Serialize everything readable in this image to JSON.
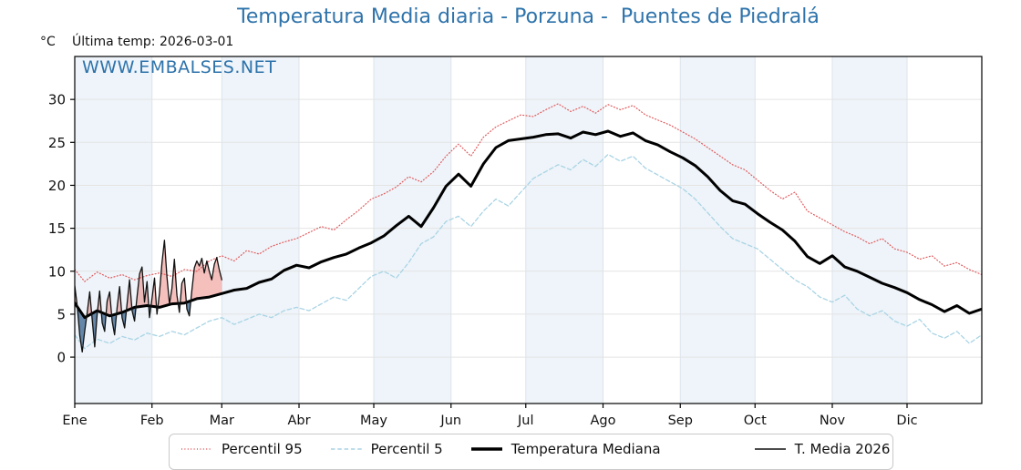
{
  "title": "Temperatura Media diaria - Porzuna -  Puentes de Piedralá",
  "unit_label": "°C",
  "last_temp_label": "Última temp: 2026-03-01",
  "watermark": "WWW.EMBALSES.NET",
  "colors": {
    "title_blue": "#2e73ab",
    "watermark_blue": "#2e73ab",
    "band_blue": "#eef4f9",
    "grid_h": "#e4e4e4",
    "grid_v": "#dde4ea",
    "spine": "#000000",
    "fill_above": "rgba(233,112,106,0.45)",
    "fill_below": "rgba(54,98,142,0.75)"
  },
  "chart_data": {
    "type": "line",
    "title": "Temperatura Media diaria - Porzuna -  Puentes de Piedralá",
    "xlabel": "",
    "ylabel": "°C",
    "ylim": [
      -5.4,
      35
    ],
    "grid": true,
    "legend_position": "bottom",
    "y_ticks": [
      0,
      5,
      10,
      15,
      20,
      25,
      30
    ],
    "x_tick_labels": [
      "Ene",
      "Feb",
      "Mar",
      "Abr",
      "May",
      "Jun",
      "Jul",
      "Ago",
      "Sep",
      "Oct",
      "Nov",
      "Dic"
    ],
    "x_tick_days": [
      1,
      32,
      60,
      91,
      121,
      152,
      182,
      213,
      244,
      274,
      305,
      335
    ],
    "month_lengths": [
      31,
      28,
      31,
      30,
      31,
      30,
      31,
      31,
      30,
      31,
      30,
      31
    ],
    "days_climatology": [
      1,
      5,
      10,
      15,
      20,
      25,
      30,
      35,
      40,
      45,
      50,
      55,
      60,
      65,
      70,
      75,
      80,
      85,
      90,
      95,
      100,
      105,
      110,
      115,
      120,
      125,
      130,
      135,
      140,
      145,
      150,
      155,
      160,
      165,
      170,
      175,
      180,
      185,
      190,
      195,
      200,
      205,
      210,
      215,
      220,
      225,
      230,
      235,
      240,
      245,
      250,
      255,
      260,
      265,
      270,
      275,
      280,
      285,
      290,
      295,
      300,
      305,
      310,
      315,
      320,
      325,
      330,
      335,
      340,
      345,
      350,
      355,
      360,
      365
    ],
    "days_2026": [
      1,
      2,
      3,
      4,
      5,
      6,
      7,
      8,
      9,
      10,
      11,
      12,
      13,
      14,
      15,
      16,
      17,
      18,
      19,
      20,
      21,
      22,
      23,
      24,
      25,
      26,
      27,
      28,
      29,
      30,
      31,
      32,
      33,
      34,
      35,
      36,
      37,
      38,
      39,
      40,
      41,
      42,
      43,
      44,
      45,
      46,
      47,
      48,
      49,
      50,
      51,
      52,
      53,
      54,
      55,
      56,
      57,
      58,
      59,
      60
    ],
    "series": [
      {
        "name": "Percentil 95",
        "style": "dotted",
        "color": "#e25b5e",
        "width": 1.2,
        "x_key": "days_climatology",
        "values": [
          10.2,
          8.8,
          9.9,
          9.2,
          9.6,
          9.0,
          9.5,
          9.8,
          9.4,
          10.2,
          10.0,
          11.2,
          11.8,
          11.2,
          12.4,
          12.0,
          12.9,
          13.4,
          13.8,
          14.5,
          15.2,
          14.8,
          16.0,
          17.1,
          18.4,
          19.0,
          19.8,
          21.0,
          20.4,
          21.6,
          23.4,
          24.8,
          23.4,
          25.6,
          26.8,
          27.5,
          28.2,
          28.0,
          28.8,
          29.5,
          28.6,
          29.2,
          28.4,
          29.4,
          28.8,
          29.3,
          28.2,
          27.6,
          27.0,
          26.2,
          25.4,
          24.4,
          23.4,
          22.4,
          21.8,
          20.6,
          19.4,
          18.4,
          19.2,
          17.0,
          16.2,
          15.4,
          14.6,
          14.0,
          13.2,
          13.8,
          12.6,
          12.2,
          11.4,
          11.8,
          10.6,
          11.0,
          10.2,
          9.6
        ]
      },
      {
        "name": "Percentil 5",
        "style": "dashed",
        "color": "#a9d4e5",
        "width": 1.3,
        "x_key": "days_climatology",
        "values": [
          2.6,
          1.0,
          2.1,
          1.6,
          2.4,
          2.0,
          2.8,
          2.4,
          3.0,
          2.6,
          3.4,
          4.2,
          4.6,
          3.8,
          4.4,
          5.0,
          4.6,
          5.4,
          5.8,
          5.4,
          6.2,
          7.0,
          6.6,
          8.0,
          9.4,
          10.0,
          9.2,
          11.0,
          13.2,
          14.0,
          15.8,
          16.4,
          15.2,
          17.0,
          18.4,
          17.6,
          19.2,
          20.8,
          21.6,
          22.4,
          21.8,
          23.0,
          22.2,
          23.6,
          22.8,
          23.4,
          22.0,
          21.2,
          20.4,
          19.6,
          18.4,
          16.8,
          15.2,
          13.8,
          13.2,
          12.6,
          11.4,
          10.2,
          9.0,
          8.2,
          7.0,
          6.4,
          7.2,
          5.6,
          4.8,
          5.4,
          4.2,
          3.6,
          4.4,
          2.8,
          2.2,
          3.0,
          1.6,
          2.6
        ]
      },
      {
        "name": "Temperatura Mediana",
        "style": "solid-thick",
        "color": "#000000",
        "width": 3,
        "x_key": "days_climatology",
        "values": [
          6.3,
          4.6,
          5.4,
          4.8,
          5.2,
          5.8,
          6.0,
          5.8,
          6.2,
          6.3,
          6.8,
          7.0,
          7.4,
          7.8,
          8.0,
          8.7,
          9.1,
          10.1,
          10.7,
          10.4,
          11.1,
          11.6,
          12.0,
          12.7,
          13.3,
          14.1,
          15.3,
          16.4,
          15.2,
          17.4,
          19.9,
          21.3,
          19.9,
          22.5,
          24.4,
          25.2,
          25.4,
          25.6,
          25.9,
          26.0,
          25.5,
          26.2,
          25.9,
          26.3,
          25.7,
          26.1,
          25.2,
          24.7,
          23.9,
          23.2,
          22.3,
          21.0,
          19.4,
          18.2,
          17.8,
          16.7,
          15.7,
          14.8,
          13.5,
          11.7,
          10.9,
          11.8,
          10.5,
          10.0,
          9.3,
          8.6,
          8.1,
          7.5,
          6.7,
          6.1,
          5.3,
          6.0,
          5.1,
          5.6
        ]
      },
      {
        "name": "T. Media 2026",
        "style": "solid-thin",
        "color": "#111111",
        "width": 1.3,
        "x_key": "days_2026",
        "fill_against": "Temperatura Mediana",
        "values": [
          8.3,
          6.0,
          2.5,
          0.6,
          3.0,
          5.2,
          7.6,
          4.4,
          1.2,
          5.0,
          7.7,
          4.0,
          3.0,
          6.5,
          7.6,
          4.2,
          2.6,
          5.8,
          8.2,
          4.6,
          3.4,
          6.2,
          9.0,
          5.4,
          4.2,
          7.0,
          9.7,
          10.5,
          6.4,
          8.8,
          4.6,
          6.8,
          9.2,
          5.0,
          7.4,
          11.0,
          13.6,
          9.4,
          6.2,
          8.0,
          11.4,
          7.2,
          5.2,
          8.6,
          9.2,
          5.6,
          4.8,
          7.8,
          10.4,
          11.2,
          10.6,
          11.5,
          9.8,
          11.2,
          10.0,
          9.0,
          10.8,
          11.6,
          10.2,
          9.0
        ]
      }
    ]
  },
  "legend": {
    "items": [
      "Percentil 95",
      "Percentil 5",
      "Temperatura Mediana",
      "T. Media 2026"
    ]
  }
}
